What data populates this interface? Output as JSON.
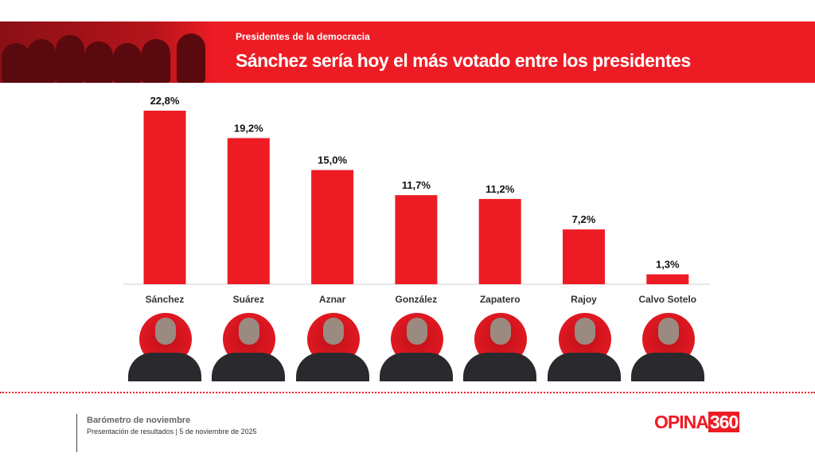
{
  "header": {
    "subtitle": "Presidentes de la democracia",
    "title": "Sánchez sería hoy el más votado entre los presidentes"
  },
  "colors": {
    "accent": "#ed1c24"
  },
  "chart_data": {
    "type": "bar",
    "title": "Sánchez sería hoy el más votado entre los presidentes",
    "categories": [
      "Sánchez",
      "Suárez",
      "Aznar",
      "González",
      "Zapatero",
      "Rajoy",
      "Calvo Sotelo"
    ],
    "values": [
      22.8,
      19.2,
      15.0,
      11.7,
      11.2,
      7.2,
      1.3
    ],
    "value_labels": [
      "22,8%",
      "19,2%",
      "15,0%",
      "11,7%",
      "11,2%",
      "7,2%",
      "1,3%"
    ],
    "unit": "%",
    "ylim": [
      0,
      22.8
    ],
    "grid": false,
    "color": "#ed1c24"
  },
  "footer": {
    "line1": "Barómetro de noviembre",
    "line2": "Presentación de resultados | 5 de noviembre de 2025",
    "logo_text": "OPINA",
    "logo_num": "360"
  }
}
